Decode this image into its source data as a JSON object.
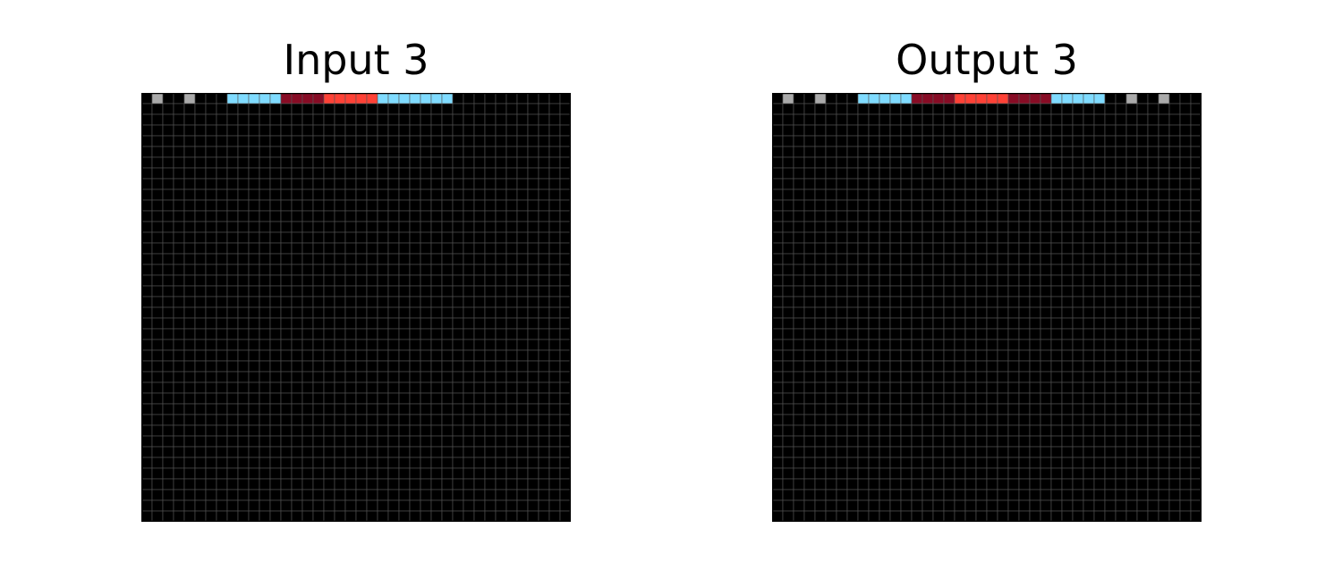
{
  "panels": [
    {
      "title": "Input 3",
      "rows": [
        "0500500088888999922222888888800000000000",
        "0000000000000000000000000000000000000000",
        "0000000000000000000000000000000000000000",
        "0000000000000000000000000000000000000000",
        "0000000000000000000000000000000000000000",
        "0000000000000000000000000000000000000000",
        "0000000000000000000000000000000000000000",
        "0000000000000000000000000000000000000000",
        "0000000000000000000000000000000000000000",
        "0000000000000000000000000000000000000000",
        "0000000000000000000000000000000000000000",
        "0000000000000000000000000000000000000000",
        "0000000000000000000000000000000000000000",
        "0000000000000000000000000000000000000000",
        "0000000000000000000000000000000000000000",
        "0000000000000000000000000000000000000000",
        "0000000000000000000000000000000000000000",
        "0000000000000000000000000000000000000000",
        "0000000000000000000000000000000000000000",
        "0000000000000000000000000000000000000000",
        "0000000000000000000000000000000000000000",
        "0000000000000000000000000000000000000000",
        "0000000000000000000000000000000000000000",
        "0000000000000000000000000000000000000000",
        "0000000000000000000000000000000000000000",
        "0000000000000000000000000000000000000000",
        "0000000000000000000000000000000000000000",
        "0000000000000000000000000000000000000000",
        "0000000000000000000000000000000000000000",
        "0000000000000000000000000000000000000000",
        "0000000000000000000000000000000000000000",
        "0000000000000000000000000000000000000000",
        "0000000000000000000000000000000000000000",
        "0000000000000000000000000000000000000000",
        "0000000000000000000000000000000000000000",
        "0000000000000000000000000000000000000000",
        "0000000000000000000000000000000000000000",
        "0000000000000000000000000000000000000000",
        "0000000000000000000000000000000000000000",
        "0000000000000000000000000000000000000000"
      ]
    },
    {
      "title": "Output 3",
      "rows": [
        "0500500088888999922222999988888005005000",
        "0000000000000000000000000000000000000000",
        "0000000000000000000000000000000000000000",
        "0000000000000000000000000000000000000000",
        "0000000000000000000000000000000000000000",
        "0000000000000000000000000000000000000000",
        "0000000000000000000000000000000000000000",
        "0000000000000000000000000000000000000000",
        "0000000000000000000000000000000000000000",
        "0000000000000000000000000000000000000000",
        "0000000000000000000000000000000000000000",
        "0000000000000000000000000000000000000000",
        "0000000000000000000000000000000000000000",
        "0000000000000000000000000000000000000000",
        "0000000000000000000000000000000000000000",
        "0000000000000000000000000000000000000000",
        "0000000000000000000000000000000000000000",
        "0000000000000000000000000000000000000000",
        "0000000000000000000000000000000000000000",
        "0000000000000000000000000000000000000000",
        "0000000000000000000000000000000000000000",
        "0000000000000000000000000000000000000000",
        "0000000000000000000000000000000000000000",
        "0000000000000000000000000000000000000000",
        "0000000000000000000000000000000000000000",
        "0000000000000000000000000000000000000000",
        "0000000000000000000000000000000000000000",
        "0000000000000000000000000000000000000000",
        "0000000000000000000000000000000000000000",
        "0000000000000000000000000000000000000000",
        "0000000000000000000000000000000000000000",
        "0000000000000000000000000000000000000000",
        "0000000000000000000000000000000000000000",
        "0000000000000000000000000000000000000000",
        "0000000000000000000000000000000000000000",
        "0000000000000000000000000000000000000000",
        "0000000000000000000000000000000000000000",
        "0000000000000000000000000000000000000000",
        "0000000000000000000000000000000000000000",
        "0000000000000000000000000000000000000000"
      ]
    }
  ],
  "palette": {
    "0": "#000000",
    "1": "#0074d9",
    "2": "#ff4136",
    "3": "#2ecc40",
    "4": "#ffdc00",
    "5": "#aaaaaa",
    "6": "#f012be",
    "7": "#ff851b",
    "8": "#7fdbff",
    "9": "#870c25"
  },
  "grid_line_color": "#555555"
}
